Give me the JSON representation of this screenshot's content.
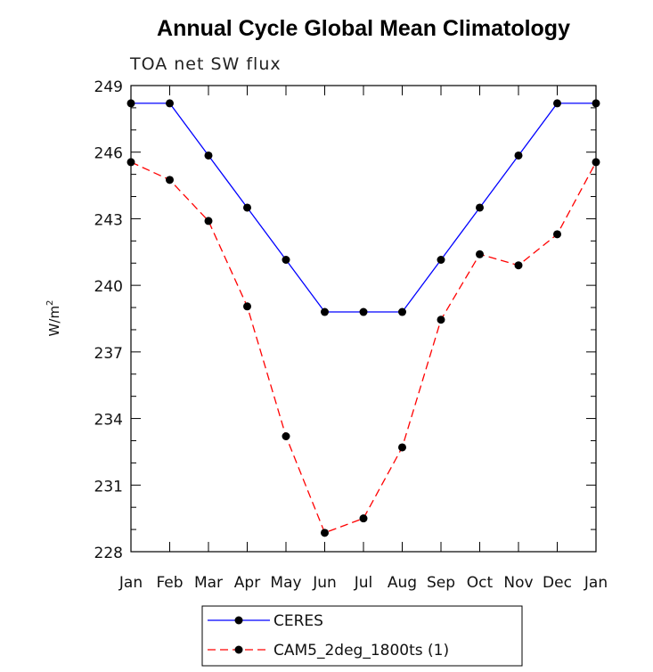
{
  "chart_data": {
    "type": "line",
    "title": "Annual Cycle Global Mean Climatology",
    "subtitle": "TOA net SW flux",
    "ylabel": "W/m",
    "ylabel_sup": "2",
    "ylim": [
      228,
      249
    ],
    "yticks": [
      228,
      231,
      234,
      237,
      240,
      243,
      246,
      249
    ],
    "categories": [
      "Jan",
      "Feb",
      "Mar",
      "Apr",
      "May",
      "Jun",
      "Jul",
      "Aug",
      "Sep",
      "Oct",
      "Nov",
      "Dec",
      "Jan"
    ],
    "grid": false,
    "legend_position": "bottom",
    "series": [
      {
        "name": "CERES",
        "color": "#0000ff",
        "line_style": "solid",
        "marker": "filled-circle",
        "values": [
          248.2,
          248.2,
          245.85,
          243.5,
          241.15,
          238.8,
          238.8,
          238.8,
          241.15,
          243.5,
          245.85,
          248.2,
          248.2
        ]
      },
      {
        "name": "CAM5_2deg_1800ts (1)",
        "color": "#ff0000",
        "line_style": "dashed",
        "marker": "filled-circle",
        "values": [
          245.55,
          244.75,
          242.9,
          239.05,
          233.2,
          228.85,
          229.5,
          232.7,
          238.45,
          241.4,
          240.9,
          242.3,
          245.55
        ]
      }
    ]
  }
}
